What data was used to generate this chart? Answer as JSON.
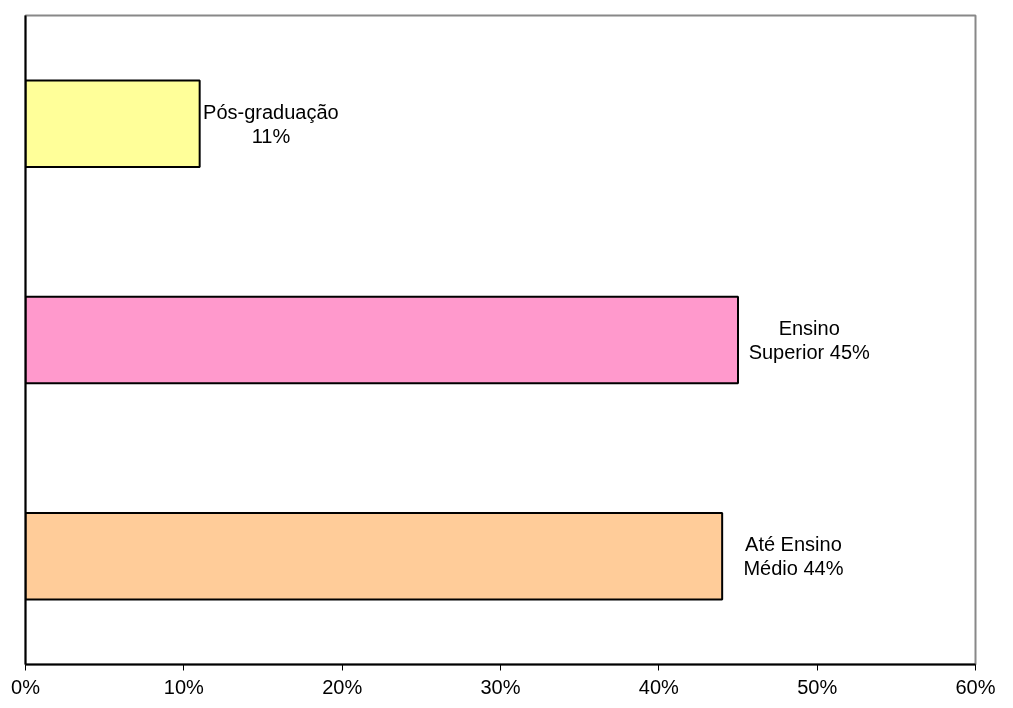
{
  "chart_data": {
    "type": "bar",
    "orientation": "horizontal",
    "categories": [
      "Pós-graduação",
      "Ensino Superior",
      "Até Ensino Médio"
    ],
    "values": [
      11,
      45,
      44
    ],
    "colors": [
      "#ffff99",
      "#ff99cc",
      "#ffcc99"
    ],
    "value_labels": [
      "11%",
      "45%",
      "44%"
    ],
    "xlim": [
      0,
      60
    ],
    "xticks": [
      {
        "value": 0,
        "label": "0%"
      },
      {
        "value": 10,
        "label": "10%"
      },
      {
        "value": 20,
        "label": "20%"
      },
      {
        "value": 30,
        "label": "30%"
      },
      {
        "value": 40,
        "label": "40%"
      },
      {
        "value": 50,
        "label": "50%"
      },
      {
        "value": 60,
        "label": "60%"
      }
    ],
    "tick_labels": "x",
    "grid": false
  }
}
